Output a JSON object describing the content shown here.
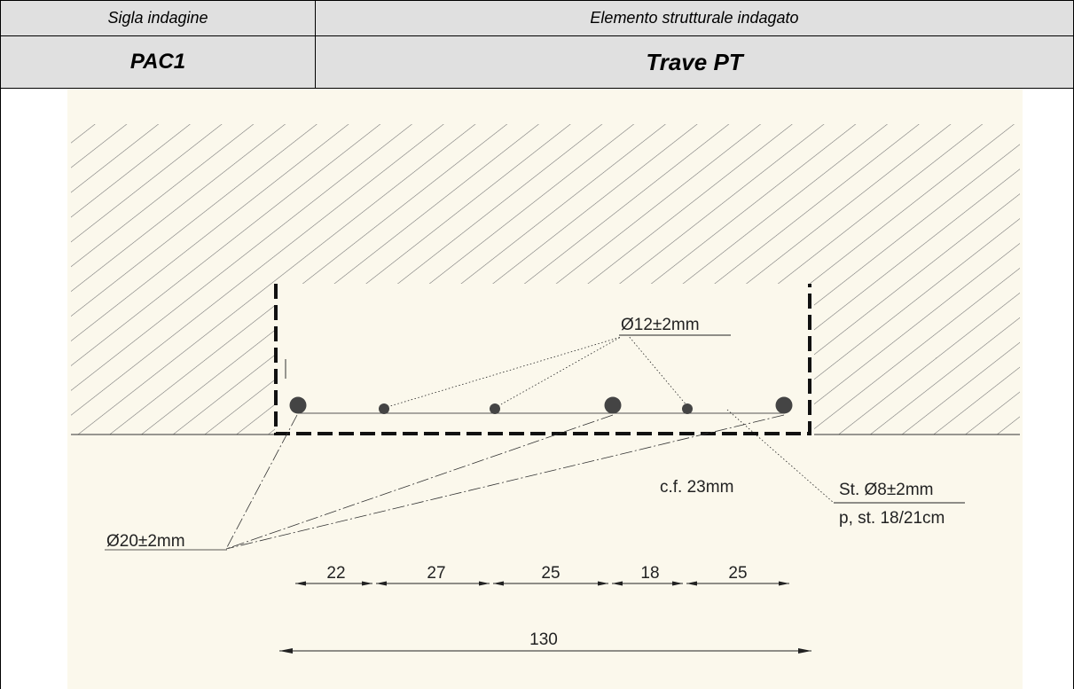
{
  "header": {
    "label_id": "Sigla indagine",
    "label_element": "Elemento strutturale indagato",
    "value_id": "PAC1",
    "value_element": "Trave PT"
  },
  "drawing": {
    "colors": {
      "background": "#fbf8ec",
      "hatch": "#707070",
      "stirrup": "#111111",
      "bar": "#444444"
    },
    "bars_top_label": "Ø12±2mm",
    "bars_corner_label": "Ø20±2mm",
    "cover_label": "c.f. 23mm",
    "stirrup_label_1": "St. Ø8±2mm",
    "stirrup_label_2": "p, st. 18/21cm",
    "spacings": [
      "22",
      "27",
      "25",
      "18",
      "25"
    ],
    "total_width": "130"
  }
}
